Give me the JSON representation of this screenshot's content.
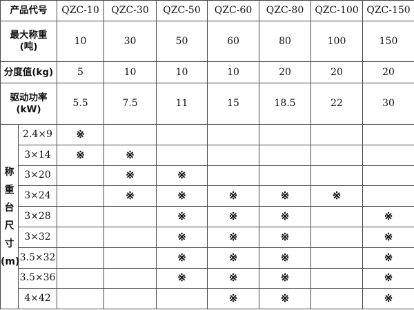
{
  "header": {
    "label": "产品代号",
    "models": [
      "QZC-10",
      "QZC-30",
      "QZC-50",
      "QZC-60",
      "QZC-80",
      "QZC-100",
      "QZC-150"
    ]
  },
  "specs": [
    {
      "label": "最大称重",
      "unit": "(吨)",
      "values": [
        "10",
        "30",
        "50",
        "60",
        "80",
        "100",
        "150"
      ]
    },
    {
      "label": "分度值(kg)",
      "unit": "",
      "values": [
        "5",
        "10",
        "10",
        "10",
        "20",
        "20",
        "20"
      ]
    },
    {
      "label": "驱动功率",
      "unit": "(kW)",
      "values": [
        "5.5",
        "7.5",
        "11",
        "15",
        "18.5",
        "22",
        "30"
      ]
    }
  ],
  "platform": {
    "label_chars": [
      "称",
      "重",
      "台",
      "尺",
      "寸",
      "(m)"
    ],
    "mark_symbol": "※",
    "rows": [
      {
        "size": "2.4×9",
        "marks": [
          1,
          0,
          0,
          0,
          0,
          0,
          0
        ]
      },
      {
        "size": "3×14",
        "marks": [
          1,
          1,
          0,
          0,
          0,
          0,
          0
        ]
      },
      {
        "size": "3×20",
        "marks": [
          0,
          1,
          1,
          0,
          0,
          0,
          0
        ]
      },
      {
        "size": "3×24",
        "marks": [
          0,
          1,
          1,
          1,
          1,
          1,
          0
        ]
      },
      {
        "size": "3×28",
        "marks": [
          0,
          0,
          1,
          1,
          1,
          0,
          1
        ]
      },
      {
        "size": "3×32",
        "marks": [
          0,
          0,
          1,
          1,
          1,
          0,
          1
        ]
      },
      {
        "size": "3.5×32",
        "marks": [
          0,
          0,
          1,
          1,
          1,
          0,
          1
        ]
      },
      {
        "size": "3.5×36",
        "marks": [
          0,
          0,
          1,
          1,
          1,
          0,
          1
        ]
      },
      {
        "size": "4×42",
        "marks": [
          0,
          0,
          0,
          1,
          1,
          0,
          1
        ]
      }
    ]
  }
}
